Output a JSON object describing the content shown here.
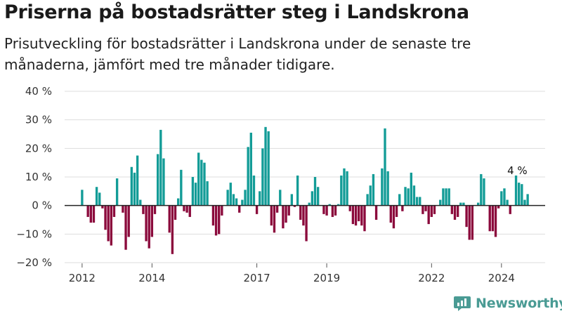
{
  "title": "Priserna på bostadsrätter steg i Landskrona",
  "subtitle": "Prisutveckling för bostadsrätter i Landskrona under de senaste tre månaderna, jämfört med tre månader tidigare.",
  "brand": {
    "name": "Newsworthy",
    "logo_icon": "newsworthy-logo-icon"
  },
  "colors": {
    "positive": "#139c97",
    "negative": "#8b0a3c",
    "grid": "#dddddd",
    "zero_line": "#222222",
    "brand": "#4a9b94"
  },
  "chart_data": {
    "type": "bar",
    "title": "Priserna på bostadsrätter steg i Landskrona",
    "subtitle": "Prisutveckling för bostadsrätter i Landskrona under de senaste tre månaderna, jämfört med tre månader tidigare.",
    "xlabel": "",
    "ylabel": "",
    "unit": "%",
    "ylim": [
      -20,
      40
    ],
    "y_ticks": [
      -20,
      -10,
      0,
      10,
      20,
      30,
      40
    ],
    "y_tick_labels": [
      "−20 %",
      "−10 %",
      "0 %",
      "10 %",
      "20 %",
      "30 %",
      "40 %"
    ],
    "x_ticks": [
      2012,
      2014,
      2017,
      2019,
      2022,
      2024
    ],
    "x_tick_labels": [
      "2012",
      "2014",
      "2017",
      "2019",
      "2022",
      "2024"
    ],
    "grid": true,
    "frequency": "monthly",
    "first_period": "2012-01",
    "last_period": "2025-02",
    "end_label": "4 %",
    "values": [
      5.5,
      0,
      -4,
      -6,
      -6,
      6.5,
      4.5,
      -1,
      -8.5,
      -12.5,
      -14,
      -4,
      9.5,
      0,
      -2.5,
      -15.5,
      -11,
      13.5,
      11.5,
      17.5,
      2,
      -3,
      -12.5,
      -15,
      -11,
      -3,
      18,
      26.5,
      16.5,
      0,
      -9.5,
      -17,
      -5,
      2.5,
      12.5,
      -2,
      -2.5,
      -4,
      10,
      8,
      18.5,
      16,
      15,
      8.5,
      0,
      -7,
      -10.5,
      -10,
      -3.5,
      0,
      5.5,
      8,
      4,
      2.5,
      -2.5,
      2,
      5.5,
      20.5,
      25.5,
      10.5,
      -3,
      5,
      20,
      27.5,
      26,
      -7,
      -9.5,
      -2.5,
      5.5,
      -8,
      -6,
      -3.5,
      4,
      -0.5,
      10.5,
      -5,
      -7,
      -12.5,
      1,
      5,
      10,
      6.5,
      0,
      -3,
      -3.5,
      0.5,
      -4,
      -3.5,
      0.5,
      10.5,
      13,
      12,
      -2,
      -6.5,
      -7,
      -5.5,
      -7,
      -9,
      4,
      7,
      11,
      -5,
      0,
      13,
      27,
      12,
      -6,
      -8,
      -4,
      4,
      -2,
      6.5,
      6,
      11.5,
      7,
      3,
      3,
      -3,
      -2,
      -6.5,
      -4,
      -3,
      0,
      2,
      6,
      6,
      6,
      -3,
      -5,
      -4,
      1,
      1,
      -7.5,
      -12,
      -12,
      0,
      1,
      11,
      9.5,
      0,
      -9,
      -9,
      -11,
      -1,
      5,
      6,
      2,
      -3,
      0,
      10.5,
      8,
      7.5,
      2,
      4
    ]
  }
}
